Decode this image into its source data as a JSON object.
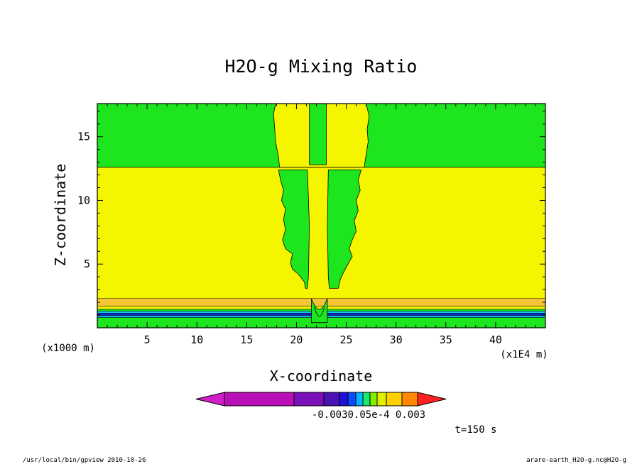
{
  "chart_data": {
    "type": "contour",
    "title": "H2O-g Mixing Ratio",
    "xlabel": "X-coordinate",
    "ylabel": "Z-coordinate",
    "x_unit": "(x1E4 m)",
    "y_unit": "(x1000 m)",
    "xlim": [
      0,
      45
    ],
    "ylim": [
      0,
      17.6
    ],
    "x_ticks": [
      5,
      10,
      15,
      20,
      25,
      30,
      35,
      40
    ],
    "x_tick_labels": [
      "5",
      "10",
      "15",
      "20",
      "25",
      "30",
      "35",
      "40"
    ],
    "y_ticks": [
      5,
      10,
      15
    ],
    "y_tick_labels": [
      "5",
      "10",
      "15"
    ],
    "fields": {
      "upper_band_top": 17.6,
      "upper_band_bottom": 12.6,
      "middle_band_bottom": 2.3,
      "plume_left_outer": [
        [
          17.9,
          17.6
        ],
        [
          17.8,
          15.5
        ],
        [
          18.2,
          12.6
        ]
      ],
      "plume_right_outer": [
        [
          27.0,
          17.6
        ],
        [
          27.2,
          15.5
        ],
        [
          26.8,
          12.6
        ]
      ],
      "center_column": [
        21.3,
        23.0
      ]
    },
    "colorbar": {
      "label_values": [
        "-0.003",
        "0.000",
        "5e-4",
        "0.003"
      ],
      "label_text": "-0.0030.05e-4  0.003",
      "colors": [
        "#d01fc6",
        "#b80fb7",
        "#7a10b8",
        "#4a11b3",
        "#1e10d6",
        "#0a4bff",
        "#00b4ff",
        "#16e86a",
        "#7ff000",
        "#dff000",
        "#fff000",
        "#ffcc00",
        "#ff9c0f",
        "#ff6a00",
        "#ff2020"
      ]
    }
  },
  "time_label": "t=150 s",
  "footer": {
    "left": "/usr/local/bin/gpview  2010-10-26",
    "right": "arare-earth_H2O-g.nc@H2O-g"
  },
  "palette": {
    "green": "#1ee61e",
    "yellow": "#f5f500",
    "orange": "#f7c436",
    "blue": "#1428c8",
    "cyan": "#10c8f0"
  }
}
